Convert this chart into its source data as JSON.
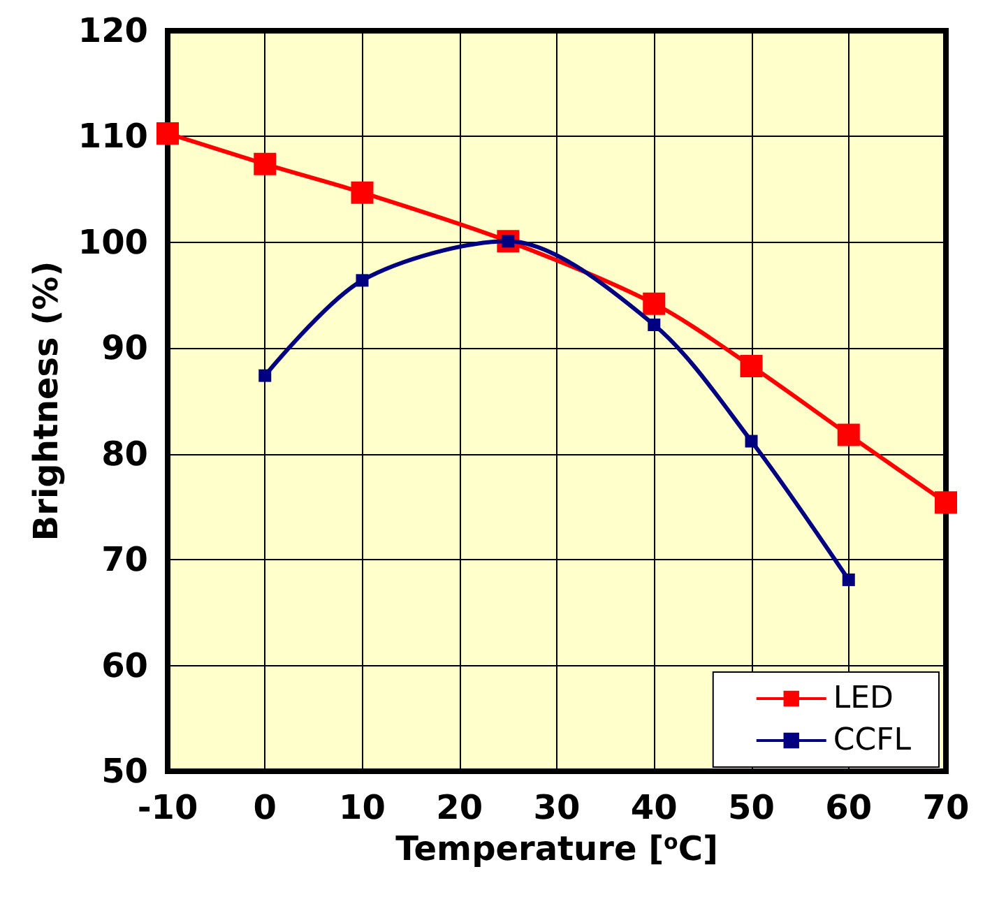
{
  "chart_data": {
    "type": "line",
    "xlabel": "Temperature [$^{o}$C]",
    "ylabel": "Brightness (%)",
    "xlim": [
      -10,
      70
    ],
    "xticks": [
      -10,
      0,
      10,
      20,
      30,
      40,
      50,
      60,
      70
    ],
    "ylim": [
      50,
      120
    ],
    "yticks": [
      50,
      60,
      70,
      80,
      90,
      100,
      110,
      120
    ],
    "grid": true,
    "legend": "bottom right",
    "marker": "square",
    "line_style": "solid",
    "series": [
      {
        "name": "LED",
        "color": "#ff0000",
        "x": [
          -10,
          0,
          10,
          25,
          40,
          50,
          60,
          70
        ],
        "values": [
          110.3,
          107.4,
          104.7,
          100.1,
          94.2,
          88.3,
          81.8,
          75.4
        ]
      },
      {
        "name": "CCFL",
        "color": "#000080",
        "x": [
          0,
          10,
          25,
          40,
          50,
          60
        ],
        "values": [
          87.4,
          96.4,
          100.1,
          92.2,
          81.2,
          68.1
        ]
      }
    ]
  }
}
